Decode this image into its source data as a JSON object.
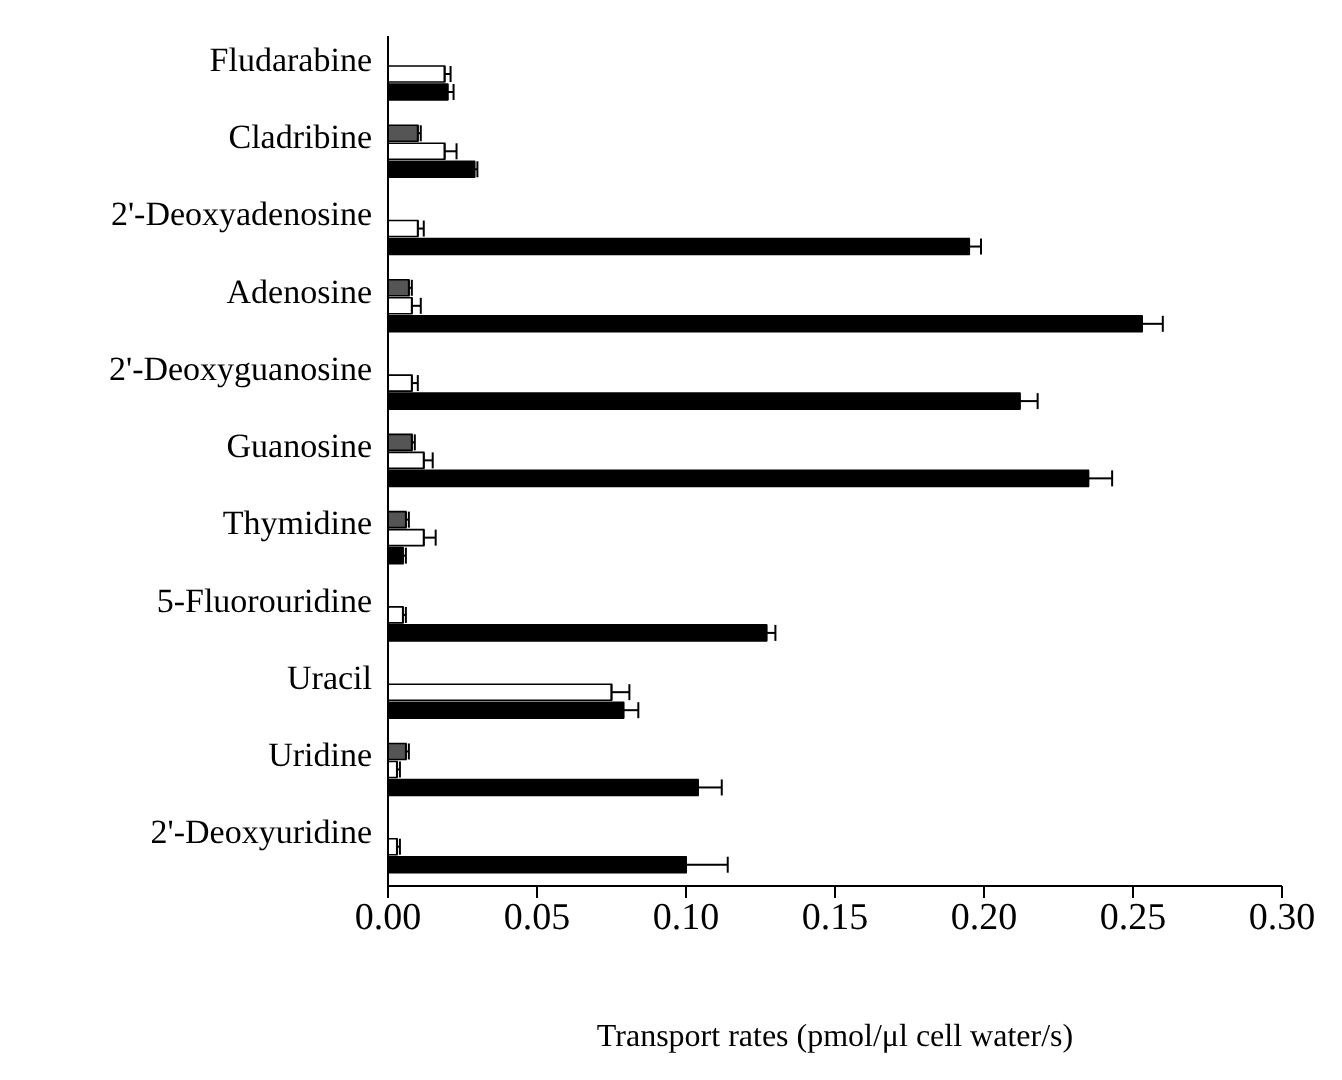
{
  "chart_data": {
    "type": "bar",
    "orientation": "horizontal",
    "xlabel": "Transport rates (pmol/μl cell water/s)",
    "categories": [
      "Fludarabine",
      "Cladribine",
      "2'-Deoxyadenosine",
      "Adenosine",
      "2'-Deoxyguanosine",
      "Guanosine",
      "Thymidine",
      "5-Fluorouridine",
      "Uracil",
      "Uridine",
      "2'-Deoxyuridine"
    ],
    "series": [
      {
        "color": "#555555",
        "values": [
          null,
          0.01,
          null,
          0.007,
          null,
          0.008,
          0.006,
          null,
          null,
          0.006,
          null
        ],
        "errors": [
          null,
          0.001,
          null,
          0.001,
          null,
          0.001,
          0.001,
          null,
          null,
          0.001,
          null
        ]
      },
      {
        "color": "#ffffff",
        "values": [
          0.019,
          0.019,
          0.01,
          0.008,
          0.008,
          0.012,
          0.012,
          0.005,
          0.075,
          0.003,
          0.003
        ],
        "errors": [
          0.002,
          0.004,
          0.002,
          0.003,
          0.002,
          0.003,
          0.004,
          0.001,
          0.006,
          0.001,
          0.001
        ]
      },
      {
        "color": "#000000",
        "values": [
          0.02,
          0.029,
          0.195,
          0.253,
          0.212,
          0.235,
          0.005,
          0.127,
          0.079,
          0.104,
          0.1
        ],
        "errors": [
          0.002,
          0.001,
          0.004,
          0.007,
          0.006,
          0.008,
          0.001,
          0.003,
          0.005,
          0.008,
          0.014
        ]
      }
    ],
    "xlim": [
      0,
      0.3
    ],
    "xticks": [
      {
        "value": 0,
        "label": "0.00"
      },
      {
        "value": 0.05,
        "label": "0.05"
      },
      {
        "value": 0.1,
        "label": "0.10"
      },
      {
        "value": 0.15,
        "label": "0.15"
      },
      {
        "value": 0.2,
        "label": "0.20"
      },
      {
        "value": 0.25,
        "label": "0.25"
      },
      {
        "value": 0.3,
        "label": "0.30"
      }
    ],
    "grid": false,
    "legend": false
  }
}
